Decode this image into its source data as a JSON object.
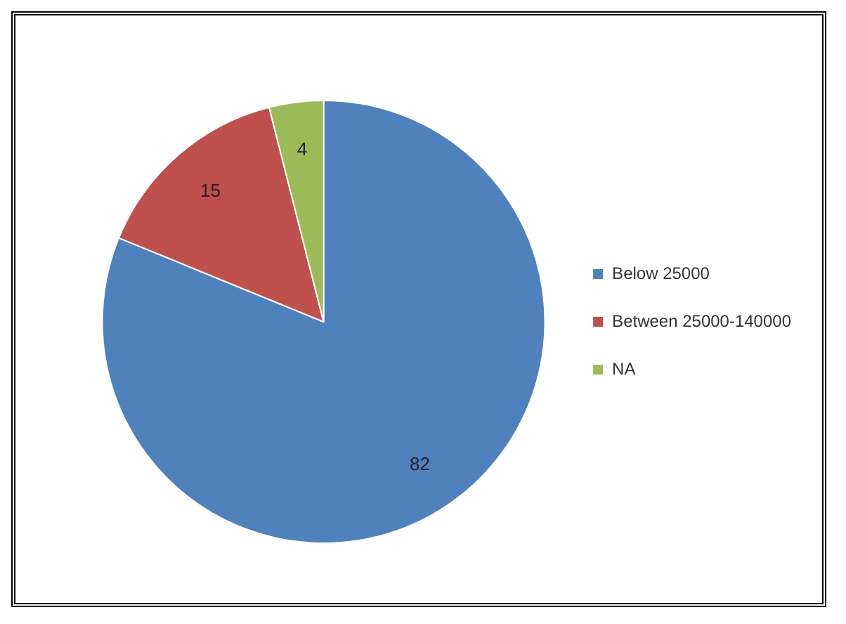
{
  "chart_data": {
    "type": "pie",
    "categories": [
      "Below 25000",
      "Between 25000-140000",
      "NA"
    ],
    "values": [
      82,
      15,
      4
    ],
    "colors": [
      "#4f81bd",
      "#c0504d",
      "#9bbb59"
    ],
    "data_labels": true,
    "legend": "right"
  }
}
